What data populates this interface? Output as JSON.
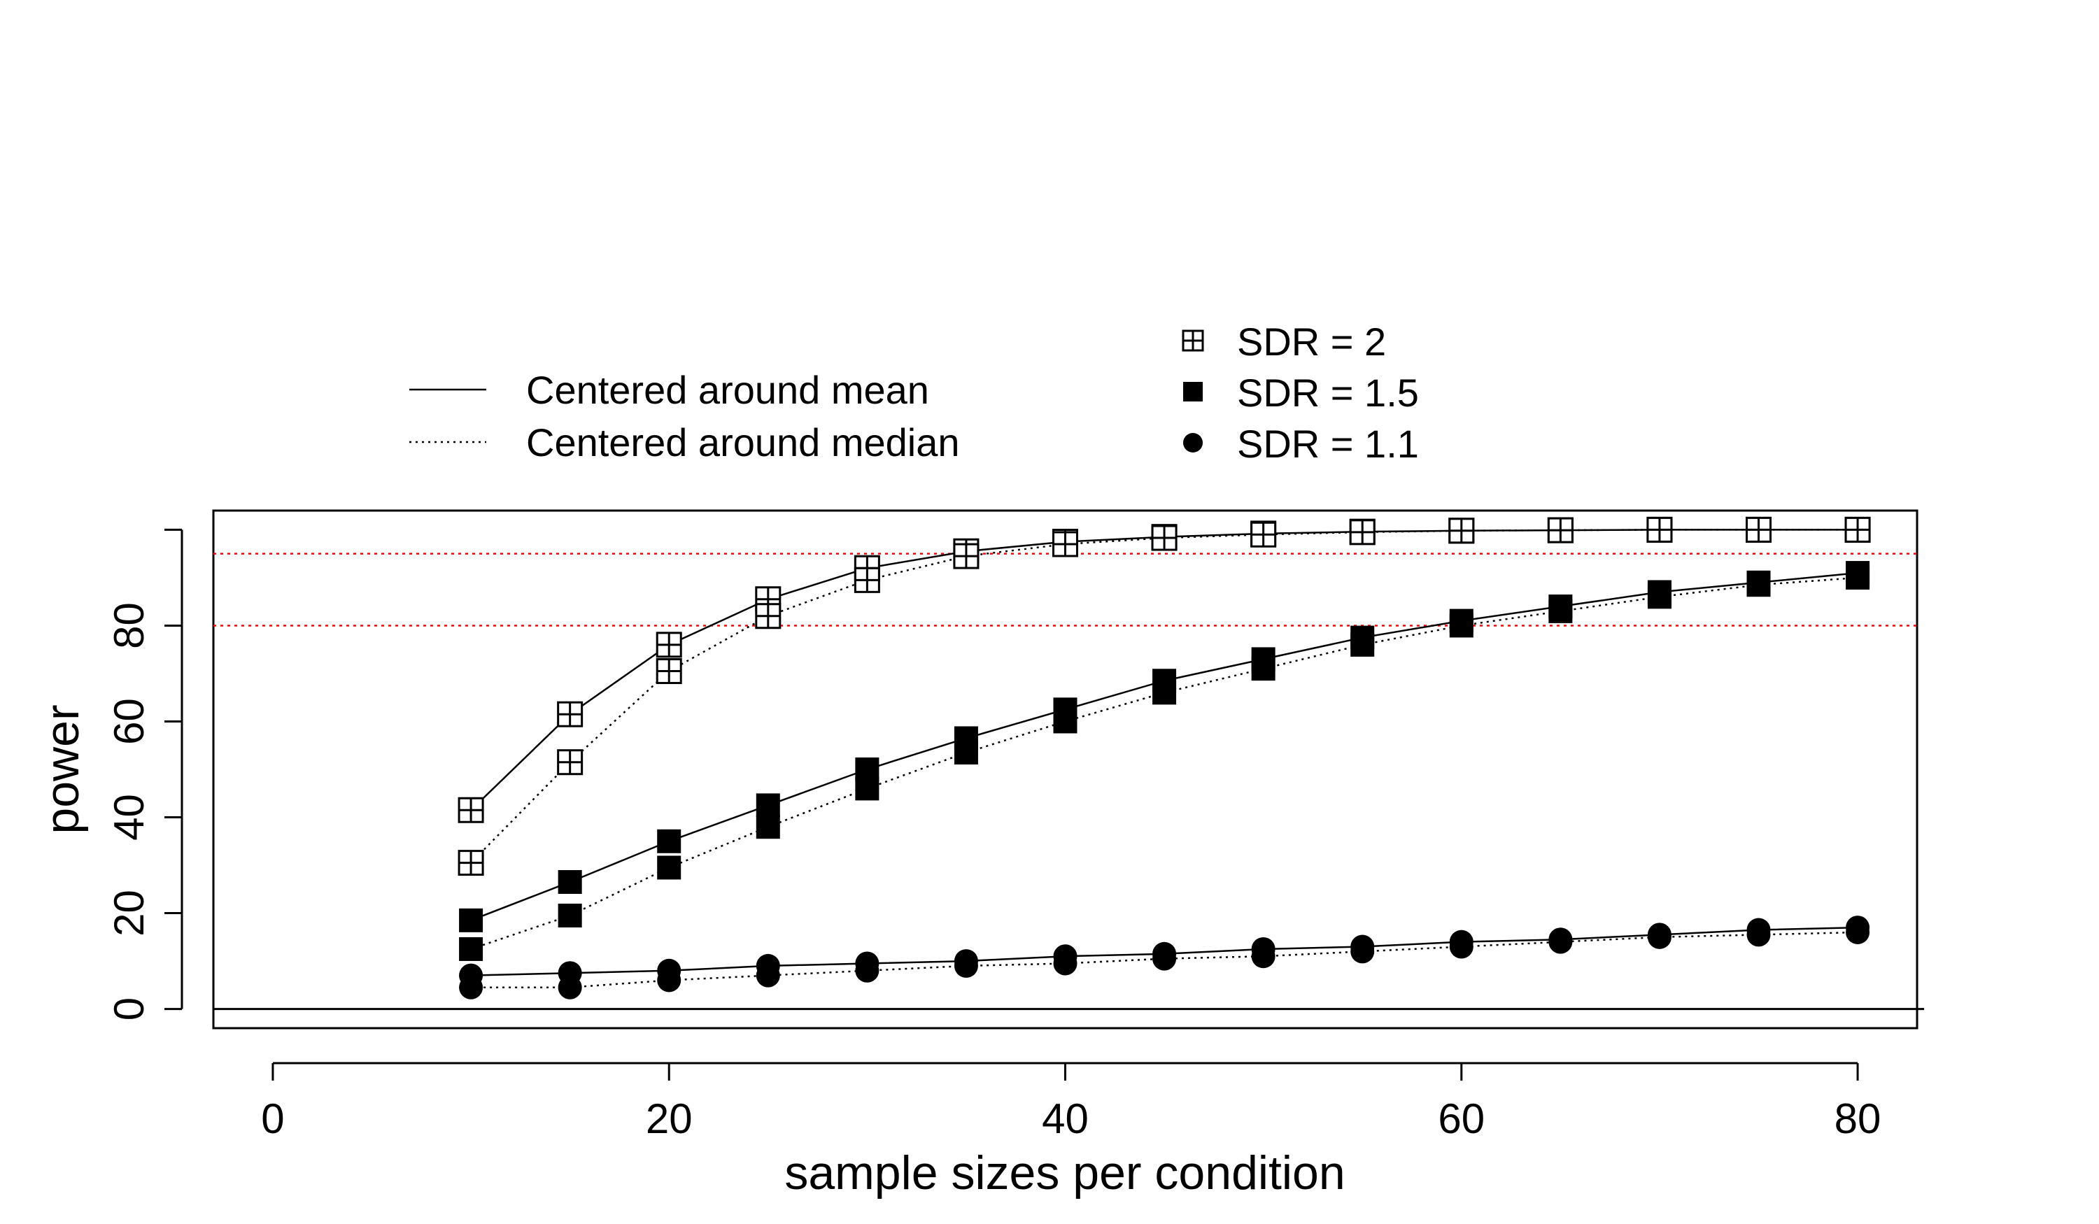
{
  "chart_data": {
    "type": "line",
    "title": "",
    "xlabel": "sample sizes per condition",
    "ylabel": "power",
    "xlim": [
      -3,
      83
    ],
    "ylim": [
      -4,
      104
    ],
    "xticks": [
      0,
      20,
      40,
      60,
      80
    ],
    "yticks": [
      0,
      20,
      40,
      60,
      80
    ],
    "reference_lines": [
      {
        "y": 80,
        "style": "dotted",
        "color": "#ff0000"
      },
      {
        "y": 95,
        "style": "dotted",
        "color": "#ff0000"
      }
    ],
    "zero_line": 0,
    "x": [
      10,
      15,
      20,
      25,
      30,
      35,
      40,
      45,
      50,
      55,
      60,
      65,
      70,
      75,
      80
    ],
    "series": [
      {
        "sdr": "SDR = 2",
        "marker": "boxplus",
        "centering": "mean",
        "line": "solid",
        "values": [
          41.5,
          61.5,
          76,
          85.5,
          92,
          95.5,
          97.5,
          98.5,
          99.2,
          99.6,
          99.8,
          99.9,
          100,
          100,
          100
        ]
      },
      {
        "sdr": "SDR = 2",
        "marker": "boxplus",
        "centering": "median",
        "line": "dotted",
        "values": [
          30.5,
          51.5,
          70.5,
          82,
          89.5,
          94.5,
          97,
          98.3,
          99,
          99.5,
          99.8,
          99.9,
          100,
          100,
          100
        ]
      },
      {
        "sdr": "SDR = 1.5",
        "marker": "square",
        "centering": "mean",
        "line": "solid",
        "values": [
          18.5,
          26.5,
          35,
          42.5,
          50,
          56.5,
          62.5,
          68.5,
          73,
          77.5,
          81,
          84,
          87,
          89,
          91
        ]
      },
      {
        "sdr": "SDR = 1.5",
        "marker": "square",
        "centering": "median",
        "line": "dotted",
        "values": [
          12.5,
          19.5,
          29.5,
          38,
          46,
          53.5,
          60,
          66,
          71,
          76,
          80,
          83,
          86,
          88.5,
          90
        ]
      },
      {
        "sdr": "SDR = 1.1",
        "marker": "circle",
        "centering": "mean",
        "line": "solid",
        "values": [
          7,
          7.5,
          8,
          9,
          9.5,
          10,
          11,
          11.5,
          12.5,
          13,
          14,
          14.5,
          15.5,
          16.5,
          17
        ]
      },
      {
        "sdr": "SDR = 1.1",
        "marker": "circle",
        "centering": "median",
        "line": "dotted",
        "values": [
          4.5,
          4.5,
          6,
          7,
          8,
          9,
          9.5,
          10.5,
          11,
          12,
          13,
          14,
          15,
          15.5,
          16
        ]
      }
    ],
    "legends": {
      "line_styles": [
        {
          "label": "Centered around mean",
          "line": "solid"
        },
        {
          "label": "Centered around median",
          "line": "dotted"
        }
      ],
      "markers": [
        {
          "label": "SDR = 2",
          "marker": "boxplus"
        },
        {
          "label": "SDR = 1.5",
          "marker": "square"
        },
        {
          "label": "SDR = 1.1",
          "marker": "circle"
        }
      ]
    },
    "colors": {
      "ink": "#000000",
      "reference": "#ff0000",
      "background": "#ffffff"
    }
  }
}
